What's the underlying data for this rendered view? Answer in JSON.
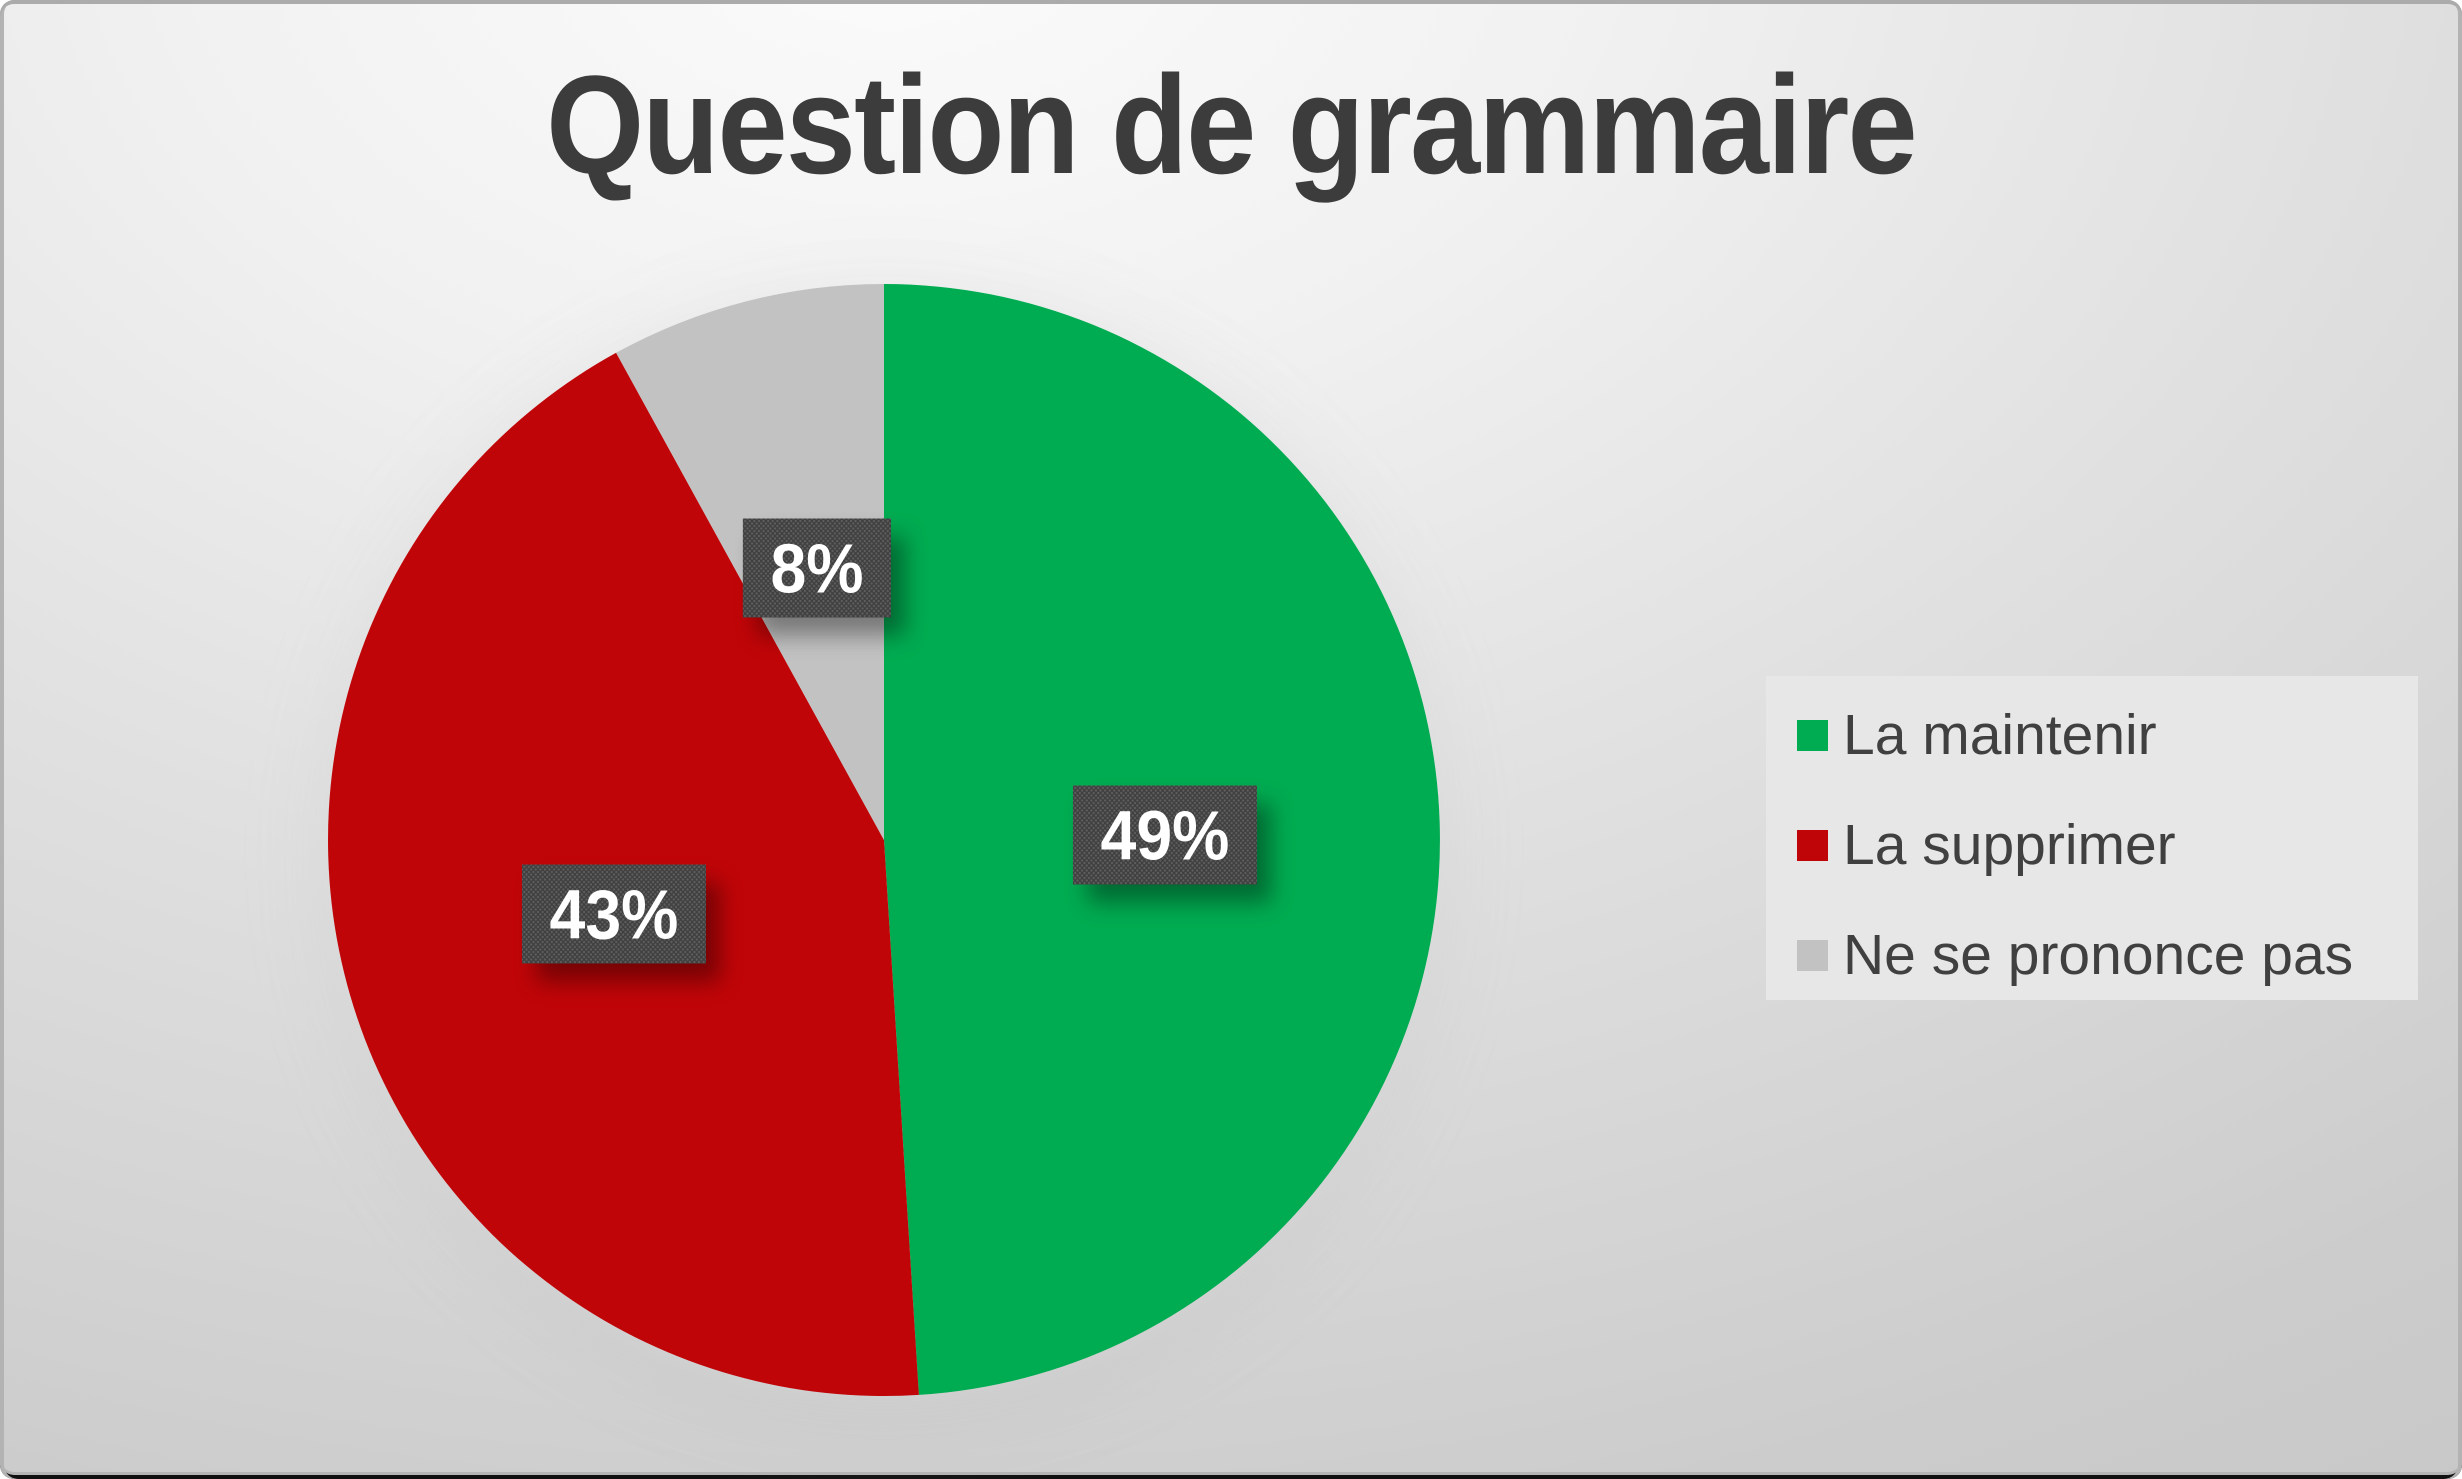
{
  "chart_data": {
    "type": "pie",
    "title": "Question de grammaire",
    "title_color": "#3C3C3C",
    "start_angle_deg": 0,
    "direction": "clockwise",
    "total": 100,
    "slices": [
      {
        "name": "La maintenir",
        "value": 49,
        "label": "49%",
        "color": "#00AC51"
      },
      {
        "name": "La supprimer",
        "value": 43,
        "label": "43%",
        "color": "#C00508"
      },
      {
        "name": "Ne se prononce pas",
        "value": 8,
        "label": "8%",
        "color": "#C2C2C2"
      }
    ],
    "data_labels": {
      "bg_color": "#3F3F3F",
      "text_color": "#FFFFFF"
    },
    "legend": {
      "position": "right",
      "bg_color": "#E7E7E7",
      "text_color": "#404040"
    }
  }
}
